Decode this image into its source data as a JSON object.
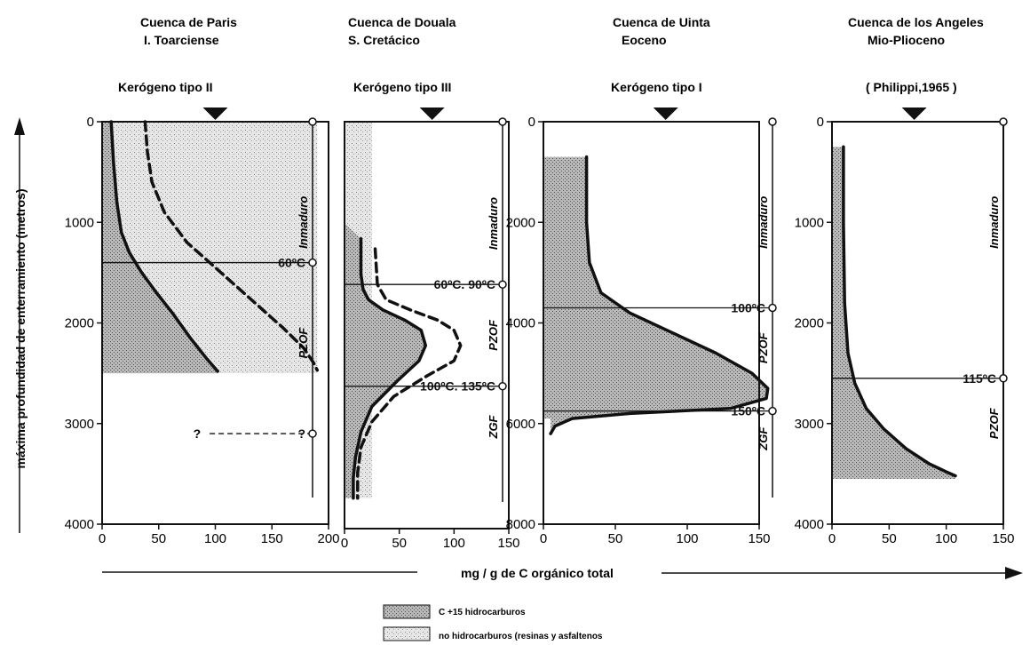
{
  "y_axis_label": "máxima profundidad de enterramiento (metros)",
  "x_axis_label": "mg / g de  C  orgánico total",
  "legend": [
    {
      "label": "C +15 hidrocarburos",
      "pattern": "dense"
    },
    {
      "label": "no hidrocarburos  (resinas y asfaltenos",
      "pattern": "light"
    }
  ],
  "colors": {
    "ink": "#111111",
    "dense_fill": "#8f8f8f",
    "light_fill": "#cfcfcf"
  },
  "chart_data": [
    {
      "type": "area",
      "title": [
        "Cuenca de Paris",
        "I. Toarciense"
      ],
      "kerogen": "Kerógeno  tipo II",
      "xlim": [
        0,
        200
      ],
      "ylim": [
        0,
        4000
      ],
      "xticks": [
        "0",
        "50",
        "100",
        "150",
        "200"
      ],
      "yticks": [
        {
          "v": 0,
          "label": "0"
        },
        {
          "v": 1000,
          "label": "1000"
        },
        {
          "v": 2000,
          "label": "2000"
        },
        {
          "v": 3000,
          "label": "3000"
        },
        {
          "v": 4000,
          "label": "4000"
        }
      ],
      "marker_x": 100,
      "series": [
        {
          "style": "solid",
          "x": [
            8,
            10,
            13,
            17,
            24,
            35,
            48,
            62,
            78,
            92,
            102
          ],
          "y": [
            0,
            400,
            800,
            1100,
            1300,
            1500,
            1700,
            1900,
            2150,
            2350,
            2480
          ]
        },
        {
          "style": "dashed",
          "x": [
            38,
            40,
            44,
            55,
            75,
            105,
            135,
            160,
            178,
            187,
            190
          ],
          "y": [
            0,
            300,
            600,
            900,
            1200,
            1500,
            1800,
            2050,
            2250,
            2400,
            2470
          ]
        }
      ],
      "shading": {
        "light_x_max": 190,
        "dense_y_from": 1400,
        "y_to": 2500
      },
      "temps": [
        {
          "depth": 1400,
          "label": "60ºC",
          "line_from_x": 0
        },
        {
          "depth": 3100,
          "label": "?",
          "left_label": "?",
          "dashed": true,
          "line_from_x": 95
        }
      ],
      "zones": [
        {
          "label": "Inmaduro",
          "depth": 1000
        },
        {
          "label": "PZOF",
          "depth": 2200
        }
      ]
    },
    {
      "type": "area",
      "title": [
        "Cuenca de Douala",
        "S. Cretácico"
      ],
      "kerogen": "Kerógeno tipo III",
      "xlim": [
        0,
        150
      ],
      "ylim": [
        0,
        4000
      ],
      "xticks": [
        "0",
        "50",
        "100",
        "150"
      ],
      "yticks": [],
      "marker_x": 80,
      "series": [
        {
          "style": "solid",
          "x": [
            15,
            15,
            17,
            22,
            35,
            55,
            70,
            74,
            68,
            48,
            25,
            15,
            10,
            8,
            8
          ],
          "y": [
            1150,
            1500,
            1650,
            1750,
            1850,
            1950,
            2050,
            2200,
            2350,
            2550,
            2800,
            3050,
            3300,
            3500,
            3700
          ]
        },
        {
          "style": "dashed",
          "x": [
            28,
            30,
            38,
            60,
            85,
            100,
            106,
            100,
            75,
            45,
            25,
            15,
            12,
            12
          ],
          "y": [
            1250,
            1600,
            1750,
            1850,
            1950,
            2050,
            2200,
            2350,
            2500,
            2700,
            2950,
            3200,
            3450,
            3700
          ]
        }
      ],
      "shading": {
        "light_x_max": 25,
        "dense_y_from": 1000,
        "y_to": 3700
      },
      "temps": [
        {
          "depth": 1600,
          "label": "60ºC. 90ºC",
          "line_from_x": 0
        },
        {
          "depth": 2600,
          "label": "100ºC. 135ºC",
          "line_from_x": 0
        }
      ],
      "zones": [
        {
          "label": "Inmaduro",
          "depth": 1000
        },
        {
          "label": "PZOF",
          "depth": 2100
        },
        {
          "label": "ZGF",
          "depth": 3000
        }
      ]
    },
    {
      "type": "area",
      "title": [
        "Cuenca de Uinta",
        "Eoceno"
      ],
      "kerogen": "Kerógeno tipo I",
      "xlim": [
        0,
        150
      ],
      "ylim": [
        8000,
        0
      ],
      "xticks": [
        "0",
        "50",
        "100",
        "150"
      ],
      "yticks": [
        {
          "v": 0,
          "label": "0"
        },
        {
          "v": 2000,
          "label": "2000"
        },
        {
          "v": 4000,
          "label": "4000"
        },
        {
          "v": 6000,
          "label": "6000"
        },
        {
          "v": 8000,
          "label": "8000"
        }
      ],
      "marker_x": 85,
      "series": [
        {
          "style": "solid",
          "x": [
            30,
            30,
            32,
            40,
            60,
            90,
            120,
            145,
            156,
            155,
            130,
            60,
            20,
            8,
            5
          ],
          "y": [
            700,
            2000,
            2800,
            3400,
            3800,
            4200,
            4600,
            5000,
            5300,
            5500,
            5700,
            5800,
            5900,
            6050,
            6200
          ]
        }
      ],
      "shading": {
        "dense_y_from": 700,
        "y_to": 5900
      },
      "temps": [
        {
          "depth": 3700,
          "label": "100ºC",
          "line_from_x": 0
        },
        {
          "depth": 5750,
          "label": "150ºC",
          "line_from_x": 0
        }
      ],
      "zones": [
        {
          "label": "Inmaduro",
          "depth": 2000
        },
        {
          "label": "PZOF",
          "depth": 4500
        },
        {
          "label": "ZGF",
          "depth": 6300
        }
      ]
    },
    {
      "type": "area",
      "title": [
        "Cuenca de los Angeles",
        "Mio-Plioceno"
      ],
      "kerogen": "( Philippi,1965 )",
      "xlim": [
        0,
        150
      ],
      "ylim": [
        0,
        4000
      ],
      "xticks": [
        "0",
        "50",
        "100",
        "150"
      ],
      "yticks": [
        {
          "v": 0,
          "label": "0"
        },
        {
          "v": 1000,
          "label": "1000"
        },
        {
          "v": 2000,
          "label": "2000"
        },
        {
          "v": 3000,
          "label": "3000"
        },
        {
          "v": 4000,
          "label": "4000"
        }
      ],
      "marker_x": 72,
      "series": [
        {
          "style": "solid",
          "x": [
            10,
            10,
            11,
            14,
            20,
            30,
            45,
            65,
            85,
            100,
            108
          ],
          "y": [
            250,
            1000,
            1800,
            2300,
            2600,
            2850,
            3050,
            3250,
            3400,
            3480,
            3520
          ]
        }
      ],
      "shading": {
        "dense_y_from": 250,
        "y_to": 3550
      },
      "temps": [
        {
          "depth": 2550,
          "label": "115ºC",
          "line_from_x": 0
        }
      ],
      "zones": [
        {
          "label": "Inmaduro",
          "depth": 1000
        },
        {
          "label": "PZOF",
          "depth": 3000
        }
      ]
    }
  ]
}
